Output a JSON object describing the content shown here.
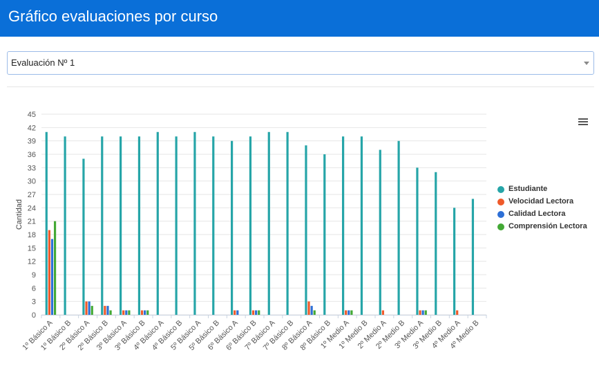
{
  "header": {
    "title": "Gráfico evaluaciones por curso"
  },
  "filter": {
    "selected": "Evaluación Nº 1"
  },
  "colors": {
    "header_bg": "#0a6fd8",
    "estudiante": "#26a5a8",
    "velocidad": "#ef5a2a",
    "calidad": "#2d6fd6",
    "comprension": "#43a935"
  },
  "icons": {
    "menu": "hamburger-menu-icon",
    "dropdown": "chevron-down-icon"
  },
  "chart_data": {
    "type": "bar",
    "ylabel": "Cantidad",
    "xlabel": "",
    "ylim": [
      0,
      45
    ],
    "yticks": [
      0,
      3,
      6,
      9,
      12,
      15,
      18,
      21,
      24,
      27,
      30,
      33,
      36,
      39,
      42,
      45
    ],
    "grid": true,
    "legend_position": "right",
    "categories": [
      "1º Básico A",
      "1º Básico B",
      "2º Básico A",
      "2º Básico B",
      "3º Básico A",
      "3º Básico B",
      "4º Básico A",
      "4º Básico B",
      "5º Básico A",
      "5º Básico B",
      "6º Básico A",
      "6º Básico B",
      "7º Básico A",
      "7º Básico B",
      "8º Básico A",
      "8º Básico B",
      "1º Medio A",
      "1º Medio B",
      "2º Medio A",
      "2º Medio B",
      "3º Medio A",
      "3º Medio B",
      "4º Medio A",
      "4º Medio B"
    ],
    "series": [
      {
        "name": "Estudiante",
        "color": "#26a5a8",
        "values": [
          41,
          40,
          35,
          40,
          40,
          40,
          41,
          40,
          41,
          40,
          39,
          40,
          41,
          41,
          38,
          36,
          40,
          40,
          37,
          39,
          33,
          32,
          24,
          26
        ]
      },
      {
        "name": "Velocidad Lectora",
        "color": "#ef5a2a",
        "values": [
          19,
          0,
          3,
          2,
          1,
          1,
          0,
          0,
          0,
          0,
          1,
          1,
          0,
          0,
          3,
          0,
          1,
          0,
          1,
          0,
          1,
          0,
          1,
          0
        ]
      },
      {
        "name": "Calidad Lectora",
        "color": "#2d6fd6",
        "values": [
          17,
          0,
          3,
          2,
          1,
          1,
          0,
          0,
          0,
          0,
          1,
          1,
          0,
          0,
          2,
          0,
          1,
          0,
          0,
          0,
          1,
          0,
          0,
          0
        ]
      },
      {
        "name": "Comprensión Lectora",
        "color": "#43a935",
        "values": [
          21,
          0,
          2,
          1,
          1,
          1,
          0,
          0,
          0,
          0,
          0,
          1,
          0,
          0,
          1,
          0,
          1,
          0,
          0,
          0,
          1,
          0,
          0,
          0
        ]
      }
    ]
  }
}
